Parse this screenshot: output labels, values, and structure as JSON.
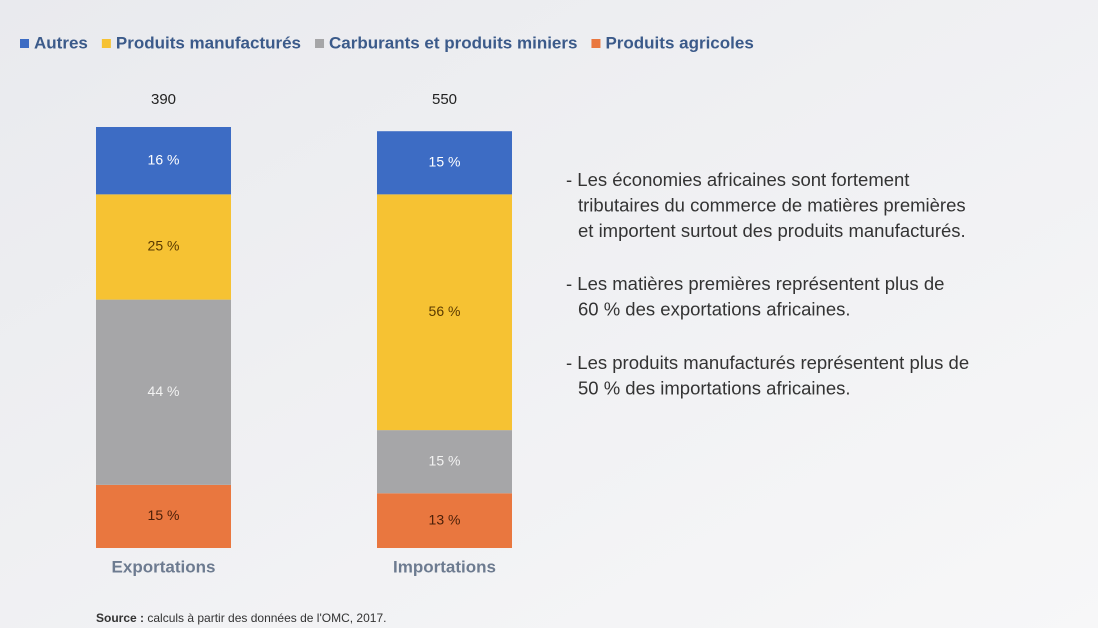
{
  "chart_data": {
    "type": "stacked_bar_100",
    "categories": [
      "Exportations",
      "Importations"
    ],
    "totals": [
      390,
      550
    ],
    "ylim": [
      0,
      100
    ],
    "series": [
      {
        "name": "Autres",
        "color": "#3d6cc4",
        "values": [
          16,
          15
        ],
        "value_labels": [
          "16 %",
          "15 %"
        ]
      },
      {
        "name": "Produits manufacturés",
        "color": "#f6c233",
        "values": [
          25,
          56
        ],
        "value_labels": [
          "25 %",
          "56 %"
        ]
      },
      {
        "name": "Carburants et produits miniers",
        "color": "#a6a6a8",
        "values": [
          44,
          15
        ],
        "value_labels": [
          "44 %",
          "15 %"
        ]
      },
      {
        "name": "Produits agricoles",
        "color": "#e9773f",
        "values": [
          15,
          13
        ],
        "value_labels": [
          "15 %",
          "13 %"
        ]
      }
    ],
    "annotations": [
      [
        "- Les économies africaines sont fortement",
        "tributaires du commerce de matières premières",
        "et importent surtout des produits manufacturés."
      ],
      [
        "- Les matières premières représentent plus de",
        "60 % des exportations africaines."
      ],
      [
        "- Les produits manufacturés représentent plus de",
        "50 % des importations africaines."
      ]
    ],
    "source_label": "Source :",
    "source_text": "calculs à partir des données de l'OMC, 2017."
  }
}
